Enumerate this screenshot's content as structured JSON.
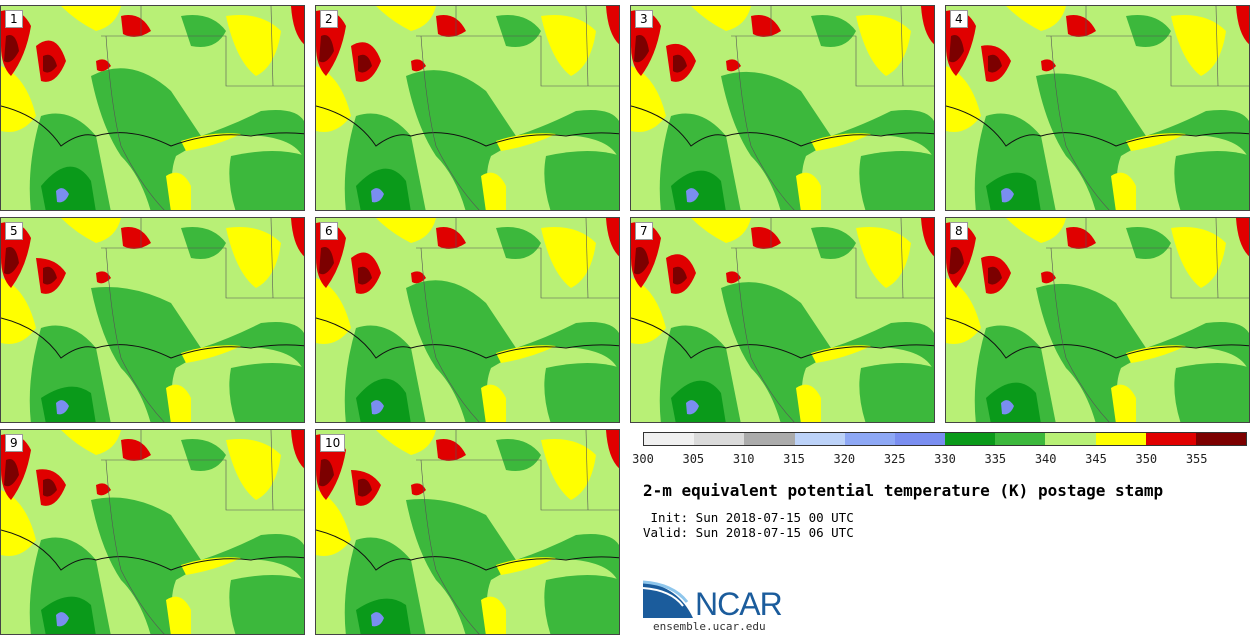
{
  "panels": [
    {
      "label": "1"
    },
    {
      "label": "2"
    },
    {
      "label": "3"
    },
    {
      "label": "4"
    },
    {
      "label": "5"
    },
    {
      "label": "6"
    },
    {
      "label": "7"
    },
    {
      "label": "8"
    },
    {
      "label": "9"
    },
    {
      "label": "10"
    }
  ],
  "colorbar": {
    "colors": [
      "#f0f0f0",
      "#dadada",
      "#ababab",
      "#bcd2f8",
      "#8ea8f5",
      "#7a8ef0",
      "#0a9a1a",
      "#3cb83c",
      "#b8f076",
      "#ffff00",
      "#e00000",
      "#7c0000"
    ],
    "ticks": [
      "300",
      "305",
      "310",
      "315",
      "320",
      "325",
      "330",
      "335",
      "340",
      "345",
      "350",
      "355"
    ]
  },
  "title": "2-m equivalent potential temperature (K) postage stamp",
  "init": " Init: Sun 2018-07-15 00 UTC",
  "valid": "Valid: Sun 2018-07-15 06 UTC",
  "logo": {
    "text": "NCAR",
    "site": "ensemble.ucar.edu",
    "color": "#1b5c9c"
  }
}
